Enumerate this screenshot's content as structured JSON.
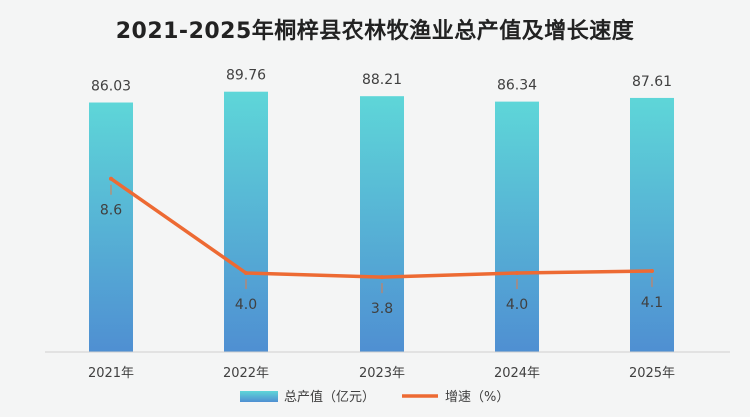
{
  "chart_data": {
    "type": "bar",
    "title": "2021-2025年桐梓县农林牧渔业总产值及增长速度",
    "categories": [
      "2021年",
      "2022年",
      "2023年",
      "2024年",
      "2025年"
    ],
    "series": [
      {
        "name": "总产值（亿元）",
        "type": "bar",
        "values": [
          86.03,
          89.76,
          88.21,
          86.34,
          87.61
        ],
        "labels": [
          "86.03",
          "89.76",
          "88.21",
          "86.34",
          "87.61"
        ],
        "color_top": "#5ed6d8",
        "color_bottom": "#4f8fd2"
      },
      {
        "name": "增速（%）",
        "type": "line",
        "values": [
          8.6,
          4.0,
          3.8,
          4.0,
          4.1
        ],
        "labels": [
          "8.6",
          "4.0",
          "3.8",
          "4.0",
          "4.1"
        ],
        "color": "#ed6a33"
      }
    ],
    "legend_position": "bottom",
    "grid": false
  }
}
